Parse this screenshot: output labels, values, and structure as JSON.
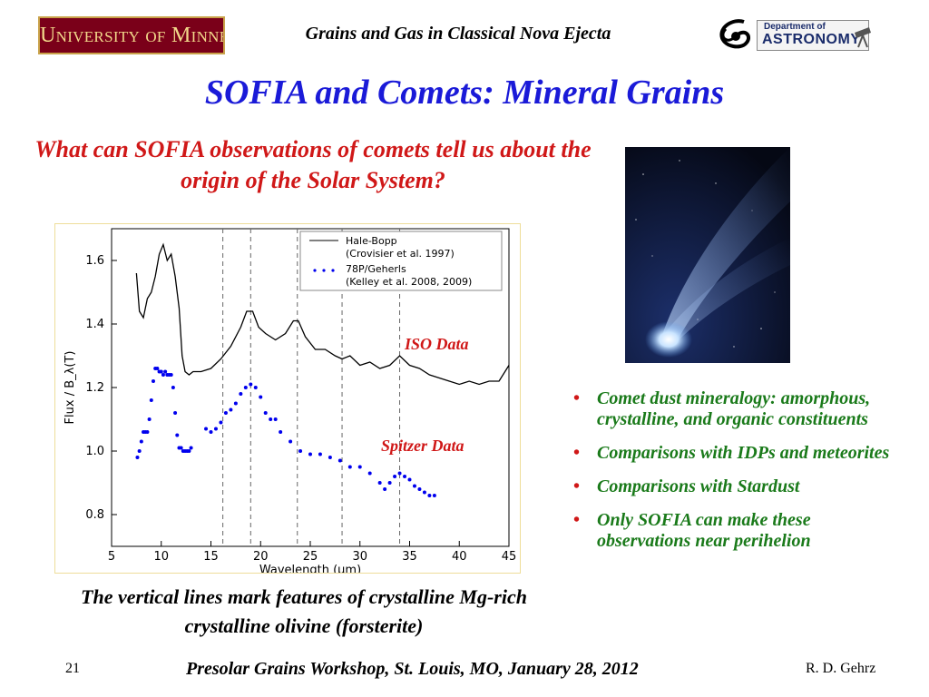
{
  "header": {
    "logo_left_text": "University of Minnesota",
    "running_title": "Grains and Gas in Classical Nova Ejecta",
    "logo_right_small": "Department of",
    "logo_right_big": "ASTRONOMY"
  },
  "slide": {
    "title": "SOFIA and Comets: Mineral Grains",
    "question": "What can SOFIA observations of comets tell us about the origin of the Solar System?",
    "caption": "The vertical lines mark features of crystalline Mg-rich crystalline olivine (forsterite)",
    "annotation_iso": "ISO Data",
    "annotation_spitzer": "Spitzer Data",
    "bullets": [
      "Comet dust mineralogy: amorphous, crystalline, and organic constituents",
      "Comparisons with IDPs and meteorites",
      "Comparisons with Stardust",
      "Only SOFIA can make these observations near perihelion"
    ]
  },
  "footer": {
    "page_number": "21",
    "center": "Presolar Grains Workshop, St. Louis, MO, January 28, 2012",
    "author": "R. D. Gehrz"
  },
  "colors": {
    "title_blue": "#1a1ad8",
    "question_red": "#d01818",
    "bullet_green": "#1a7a1a",
    "series_hale_bopp": "#000000",
    "series_78p": "#0000ee"
  },
  "chart_data": {
    "type": "line",
    "xlabel": "Wavelength (μm)",
    "ylabel": "Flux / B_λ(T)",
    "xlim": [
      5,
      45
    ],
    "ylim": [
      0.7,
      1.7
    ],
    "xticks": [
      5,
      10,
      15,
      20,
      25,
      30,
      35,
      40,
      45
    ],
    "yticks": [
      0.8,
      1.0,
      1.2,
      1.4,
      1.6
    ],
    "vlines": [
      16.2,
      19,
      23.7,
      28.2,
      34
    ],
    "legend_position": "top-right",
    "series": [
      {
        "name": "Hale-Bopp",
        "sublabel": "(Crovisier et al. 1997)",
        "style": "line",
        "x": [
          7.5,
          7.8,
          8.2,
          8.6,
          9.0,
          9.4,
          9.8,
          10.2,
          10.6,
          11.0,
          11.4,
          11.8,
          12.1,
          12.4,
          12.8,
          13.2,
          14,
          15,
          16,
          17,
          18,
          18.6,
          19.2,
          19.8,
          20.5,
          21.5,
          22.5,
          23.3,
          23.8,
          24.5,
          25.5,
          26.5,
          27.5,
          28.2,
          29,
          30,
          31,
          32,
          33,
          34,
          35,
          36,
          37,
          38,
          39,
          40,
          41,
          42,
          43,
          44,
          45
        ],
        "y": [
          1.56,
          1.44,
          1.42,
          1.48,
          1.5,
          1.55,
          1.62,
          1.65,
          1.6,
          1.62,
          1.55,
          1.45,
          1.3,
          1.25,
          1.24,
          1.25,
          1.25,
          1.26,
          1.29,
          1.33,
          1.39,
          1.44,
          1.44,
          1.39,
          1.37,
          1.35,
          1.37,
          1.41,
          1.41,
          1.36,
          1.32,
          1.32,
          1.3,
          1.29,
          1.3,
          1.27,
          1.28,
          1.26,
          1.27,
          1.3,
          1.27,
          1.26,
          1.24,
          1.23,
          1.22,
          1.21,
          1.22,
          1.21,
          1.22,
          1.22,
          1.27
        ]
      },
      {
        "name": "78P/Geherls",
        "sublabel": "(Kelley et al. 2008, 2009)",
        "style": "points",
        "x": [
          7.6,
          7.8,
          8.0,
          8.2,
          8.4,
          8.6,
          8.8,
          9.0,
          9.2,
          9.4,
          9.6,
          9.8,
          10.0,
          10.2,
          10.4,
          10.6,
          10.8,
          11.0,
          11.2,
          11.4,
          11.6,
          11.8,
          12.0,
          12.2,
          12.4,
          12.6,
          12.8,
          13.0,
          14.5,
          15.0,
          15.5,
          16.0,
          16.5,
          17.0,
          17.5,
          18.0,
          18.5,
          19.0,
          19.5,
          20.0,
          20.5,
          21.0,
          21.5,
          22.0,
          23.0,
          24.0,
          25.0,
          26.0,
          27.0,
          28.0,
          29.0,
          30.0,
          31.0,
          32.0,
          32.5,
          33.0,
          33.5,
          34.0,
          34.5,
          35.0,
          35.5,
          36.0,
          36.5,
          37.0,
          37.5
        ],
        "y": [
          0.98,
          1.0,
          1.03,
          1.06,
          1.06,
          1.06,
          1.1,
          1.16,
          1.22,
          1.26,
          1.26,
          1.25,
          1.25,
          1.24,
          1.25,
          1.24,
          1.24,
          1.24,
          1.2,
          1.12,
          1.05,
          1.01,
          1.01,
          1.0,
          1.0,
          1.0,
          1.0,
          1.01,
          1.07,
          1.06,
          1.07,
          1.09,
          1.12,
          1.13,
          1.15,
          1.18,
          1.2,
          1.21,
          1.2,
          1.17,
          1.12,
          1.1,
          1.1,
          1.06,
          1.03,
          1.0,
          0.99,
          0.99,
          0.98,
          0.97,
          0.95,
          0.95,
          0.93,
          0.9,
          0.88,
          0.9,
          0.92,
          0.93,
          0.92,
          0.91,
          0.89,
          0.88,
          0.87,
          0.86,
          0.86
        ]
      }
    ]
  }
}
